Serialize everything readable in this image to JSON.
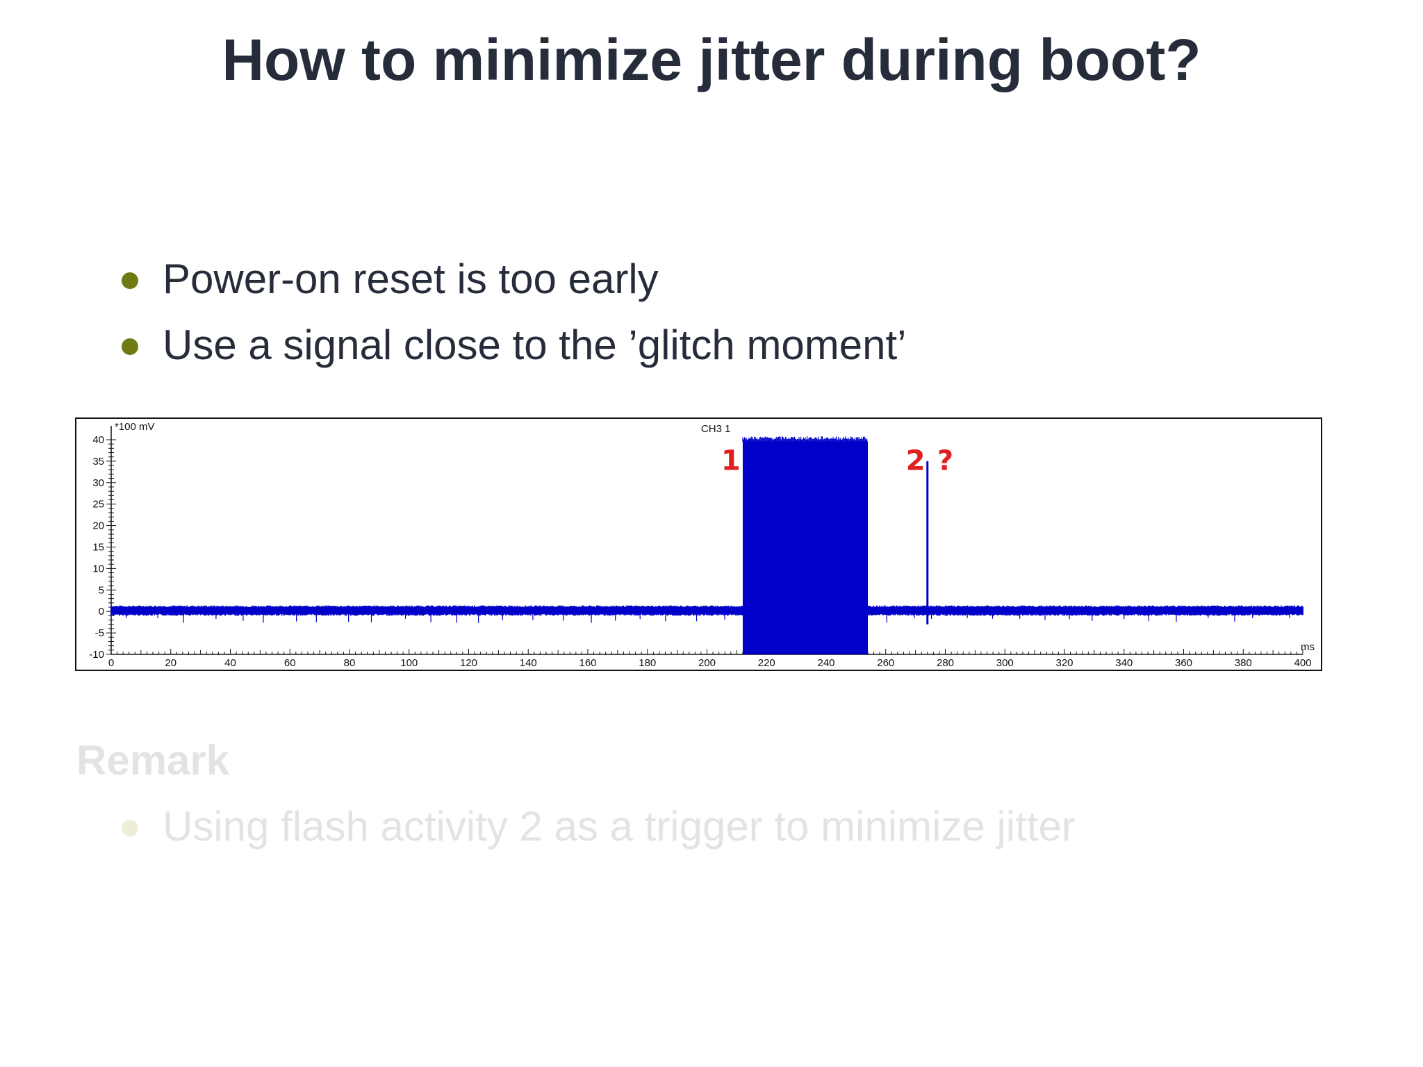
{
  "slide": {
    "title": "How to minimize jitter during boot?",
    "bullets": [
      "Power-on reset is too early",
      "Use a signal close to the ’glitch moment’"
    ],
    "remark": {
      "title": "Remark",
      "bullets": [
        "Using flash activity 2 as a trigger to minimize jitter"
      ]
    },
    "colors": {
      "title": "#262c3a",
      "bullet_dot": "#6f7a12",
      "signal": "#0000c8",
      "annotation": "#e02020"
    }
  },
  "chart_data": {
    "type": "line",
    "channel_label": "CH3 1",
    "ylabel": "*100 mV",
    "xlabel": "ms",
    "xlim": [
      0,
      400
    ],
    "ylim": [
      -10,
      40
    ],
    "x_ticks": [
      0,
      20,
      40,
      60,
      80,
      100,
      120,
      140,
      160,
      180,
      200,
      220,
      240,
      260,
      280,
      300,
      320,
      340,
      360,
      380,
      400
    ],
    "y_ticks": [
      40,
      35,
      30,
      25,
      20,
      15,
      10,
      5,
      0,
      -5,
      -10
    ],
    "series": [
      {
        "baseline_level": 0,
        "baseline_range": [
          0,
          400
        ],
        "burst": {
          "start": 212,
          "end": 254,
          "low": -10,
          "high": 40
        },
        "spike": {
          "x": 274,
          "high": 35,
          "low": -3
        }
      }
    ],
    "annotations": [
      {
        "text": "1",
        "x": 208,
        "y": 33
      },
      {
        "text": "2",
        "x": 270,
        "y": 33
      },
      {
        "text": "?",
        "x": 280,
        "y": 33
      }
    ]
  }
}
